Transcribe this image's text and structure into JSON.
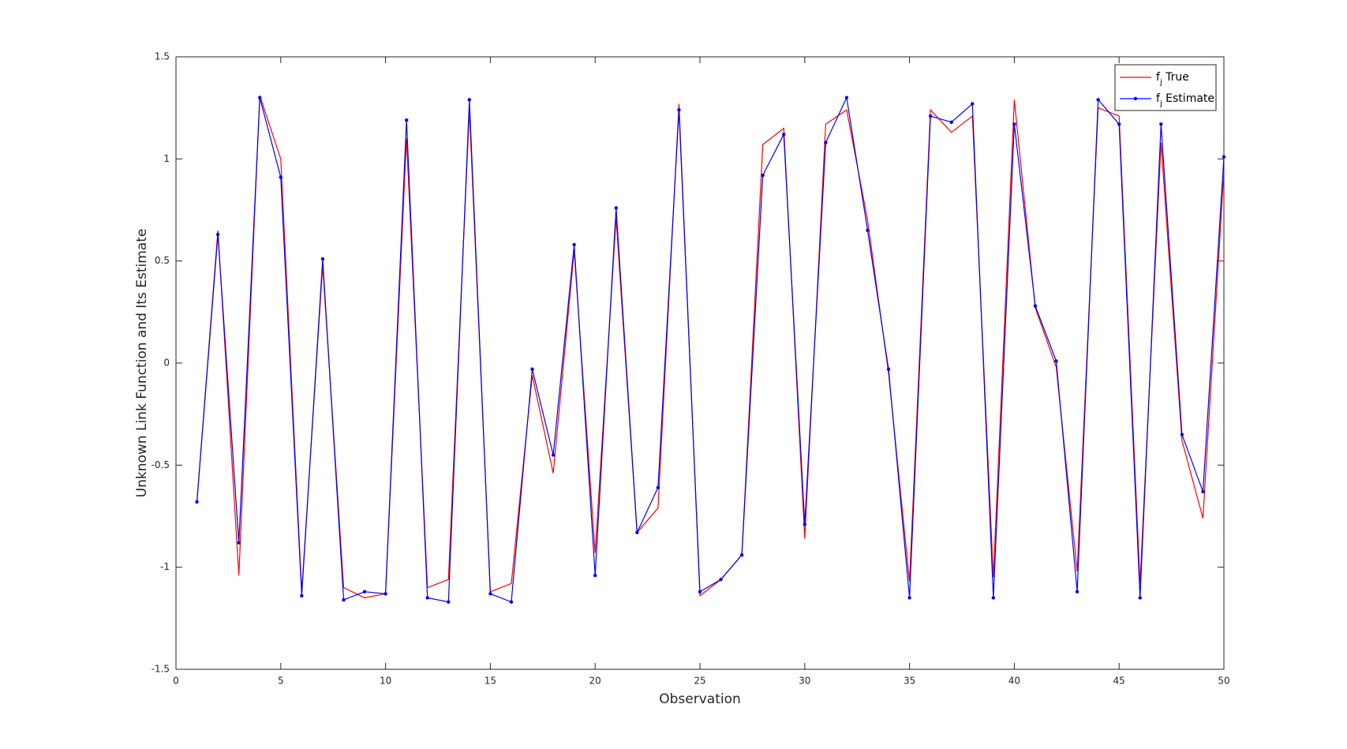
{
  "chart_data": {
    "type": "line",
    "xlabel": "Observation",
    "ylabel": "Unknown Link Function and Its Estimate",
    "x": [
      1,
      2,
      3,
      4,
      5,
      6,
      7,
      8,
      9,
      10,
      11,
      12,
      13,
      14,
      15,
      16,
      17,
      18,
      19,
      20,
      21,
      22,
      23,
      24,
      25,
      26,
      27,
      28,
      29,
      30,
      31,
      32,
      33,
      34,
      35,
      36,
      37,
      38,
      39,
      40,
      41,
      42,
      43,
      44,
      45,
      46,
      47,
      48,
      49,
      50
    ],
    "series": [
      {
        "name": "f_j True",
        "color": "#ff0000",
        "marker": false,
        "values": [
          -0.68,
          0.65,
          -1.04,
          1.31,
          1.0,
          -1.12,
          0.48,
          -1.1,
          -1.15,
          -1.13,
          1.1,
          -1.1,
          -1.06,
          1.24,
          -1.12,
          -1.08,
          -0.06,
          -0.54,
          0.55,
          -0.93,
          0.71,
          -0.83,
          -0.71,
          1.27,
          -1.14,
          -1.06,
          -0.94,
          1.07,
          1.15,
          -0.86,
          1.17,
          1.24,
          0.7,
          -0.05,
          -1.07,
          1.24,
          1.13,
          1.21,
          -1.05,
          1.29,
          0.27,
          -0.02,
          -1.02,
          1.25,
          1.21,
          -1.08,
          1.08,
          -0.38,
          -0.76,
          0.94
        ]
      },
      {
        "name": "f_j Estimate",
        "color": "#0000ff",
        "marker": true,
        "values": [
          -0.68,
          0.63,
          -0.88,
          1.3,
          0.91,
          -1.14,
          0.51,
          -1.16,
          -1.12,
          -1.13,
          1.19,
          -1.15,
          -1.17,
          1.29,
          -1.13,
          -1.17,
          -0.03,
          -0.45,
          0.58,
          -1.04,
          0.76,
          -0.83,
          -0.61,
          1.24,
          -1.12,
          -1.06,
          -0.94,
          0.92,
          1.12,
          -0.79,
          1.08,
          1.3,
          0.65,
          -0.03,
          -1.15,
          1.21,
          1.18,
          1.27,
          -1.15,
          1.17,
          0.28,
          0.01,
          -1.12,
          1.29,
          1.17,
          -1.15,
          1.17,
          -0.35,
          -0.63,
          1.01
        ]
      }
    ],
    "xlim": [
      0,
      50
    ],
    "xticks": [
      0,
      5,
      10,
      15,
      20,
      25,
      30,
      35,
      40,
      45,
      50
    ],
    "ylim": [
      -1.5,
      1.5
    ],
    "yticks": [
      -1.5,
      -1,
      -0.5,
      0,
      0.5,
      1,
      1.5
    ],
    "grid": false,
    "legend": "top-right"
  }
}
